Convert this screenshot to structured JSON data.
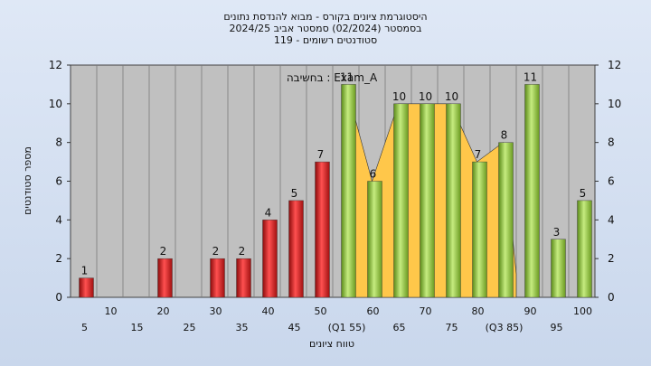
{
  "chart_data": {
    "type": "bar",
    "title_lines": [
      "היסטוגרמת ציונים בקורס - מבוא להנדסת נתונים",
      "בסמסטר  (02/2024)  סמסטר אביב 2024/25",
      "סטודנטים רשומים - 119"
    ],
    "ylabel": "מספר סטודנטים",
    "xlabel": "טווח ציונים",
    "annotation": "בחשיבה : Exam_A",
    "ylim": [
      0,
      12
    ],
    "yticks": [
      "0",
      "2",
      "4",
      "6",
      "8",
      "10",
      "12"
    ],
    "categories": [
      "5",
      "10",
      "15",
      "20",
      "25",
      "30",
      "35",
      "40",
      "45",
      "50",
      "(Q1 55)",
      "60",
      "65",
      "70",
      "75",
      "80",
      "(Q3 85)",
      "90",
      "95",
      "100"
    ],
    "values": [
      1,
      0,
      0,
      2,
      0,
      2,
      2,
      4,
      5,
      7,
      11,
      6,
      10,
      10,
      10,
      7,
      8,
      11,
      3,
      5
    ],
    "value_labels": [
      "1",
      "",
      "",
      "2",
      "",
      "2",
      "2",
      "4",
      "5",
      "7",
      "11",
      "6",
      "10",
      "10",
      "10",
      "7",
      "8",
      "11",
      "3",
      "5"
    ],
    "bar_colors": [
      "red",
      "none",
      "none",
      "red",
      "none",
      "red",
      "red",
      "red",
      "red",
      "red",
      "green",
      "green",
      "green",
      "green",
      "green",
      "green",
      "green",
      "green",
      "green",
      "green"
    ],
    "iqr_band": {
      "from": "(Q1 55)",
      "to": "(Q3 85)"
    },
    "colors": {
      "red": "#e02020",
      "green": "#8fc040",
      "band": "#ffc74a",
      "plot_bg": "#c0c0c0"
    }
  }
}
